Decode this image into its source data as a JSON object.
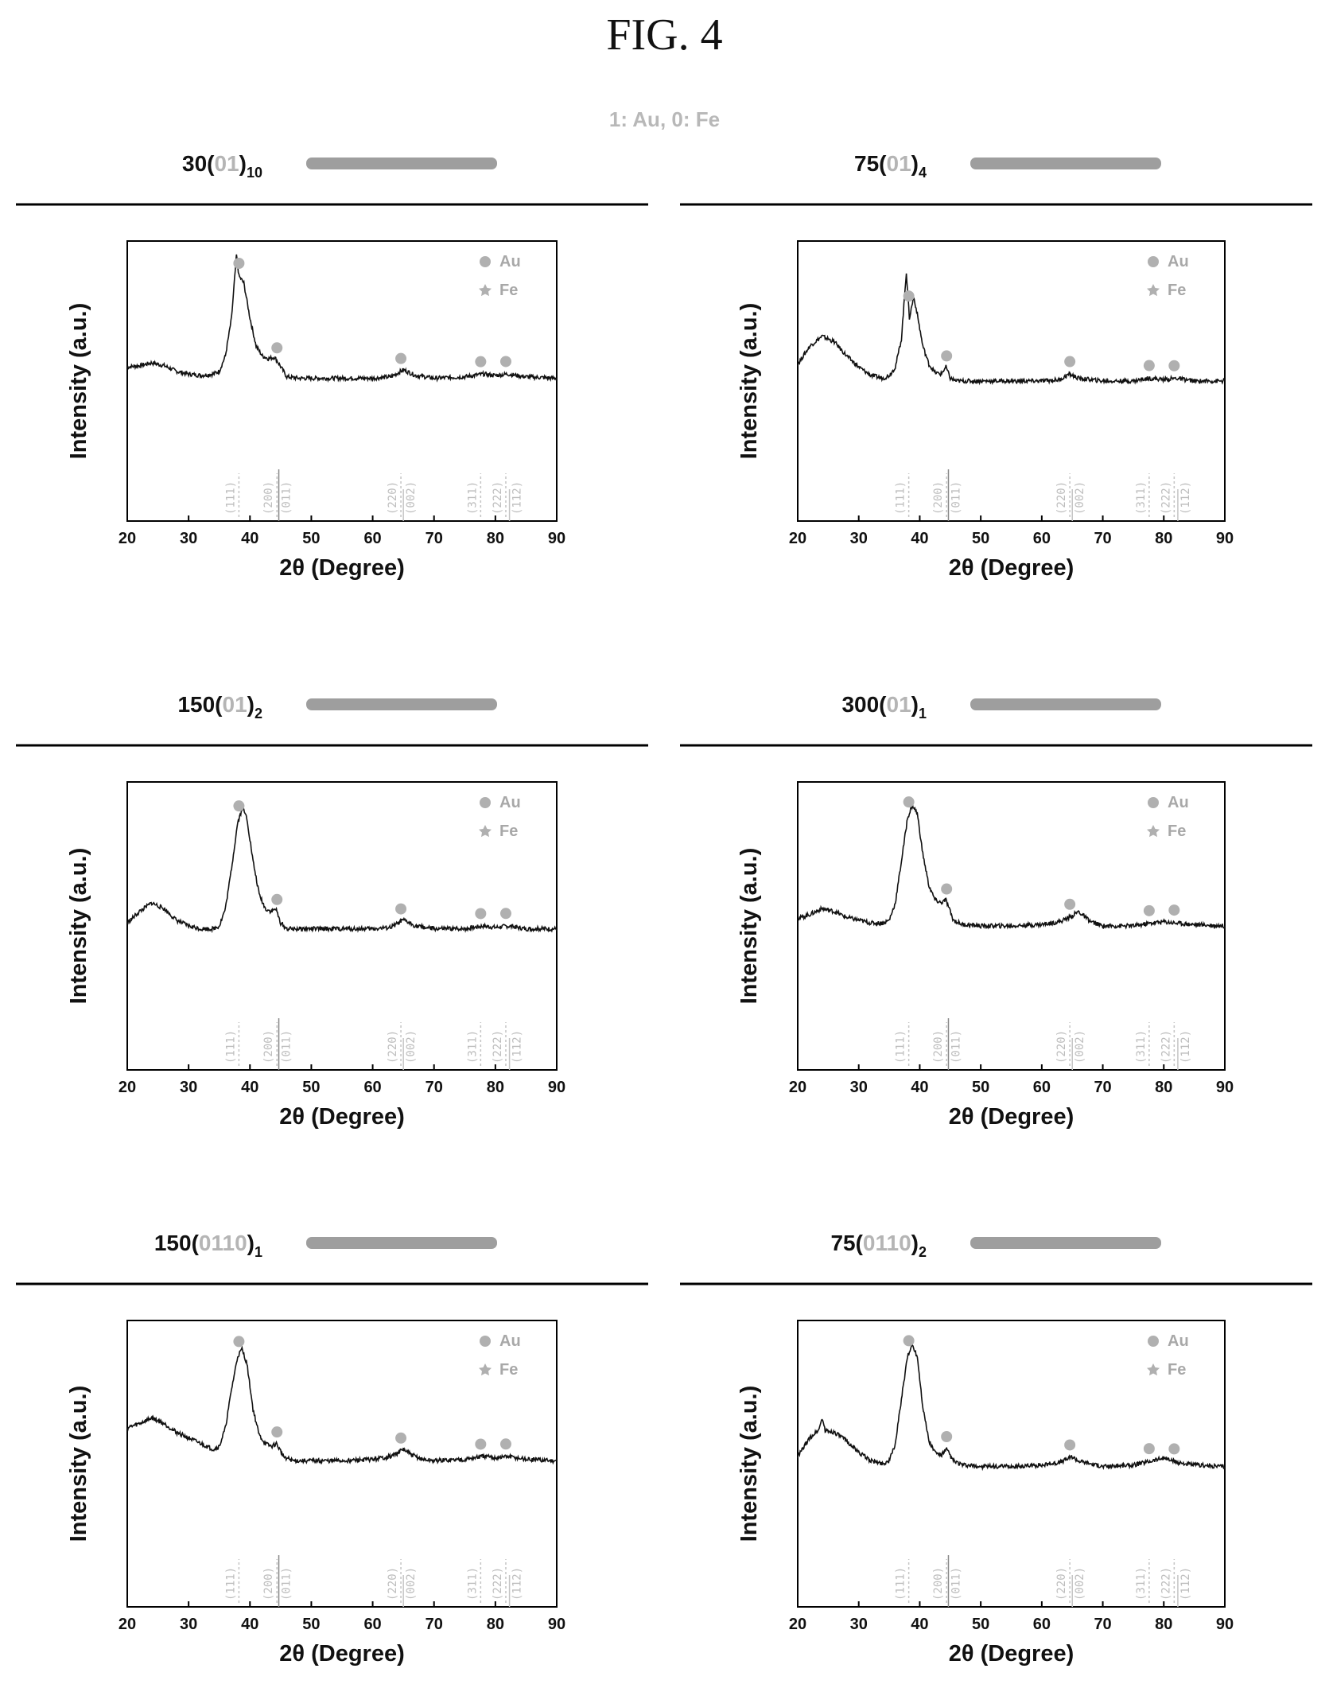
{
  "figure": {
    "title": "FIG. 4",
    "legend": {
      "label_1": "1",
      "label_1_element": "Au",
      "label_0": "0",
      "label_0_element": "Fe",
      "separator": ", "
    }
  },
  "colors": {
    "trace": "#111111",
    "marker": "#b0b0b0",
    "reference_line": "#c4c4c4",
    "bar": "#9e9e9e"
  },
  "chart_data": [
    {
      "type": "line",
      "panel": "30(01)10",
      "title_prefix": "30(",
      "title_highlight": "01",
      "title_suffix": ")",
      "title_subscript": "10",
      "xlabel": "2θ (Degree)",
      "ylabel": "Intensity (a.u.)",
      "xlim": [
        20,
        90
      ],
      "xticks": [
        20,
        30,
        40,
        50,
        60,
        70,
        80,
        90
      ],
      "legend": [
        "Au",
        "Fe"
      ],
      "legend_position": "top-right",
      "series": [
        {
          "x": [
            20,
            22,
            24,
            26,
            28,
            30,
            32,
            34,
            35,
            36,
            37,
            37.8,
            38.2,
            39,
            40,
            41,
            42,
            43,
            44,
            44.5,
            46,
            48,
            50,
            55,
            60,
            63,
            65,
            67,
            70,
            75,
            78,
            80,
            82,
            85,
            90
          ],
          "y": [
            0.2,
            0.21,
            0.23,
            0.21,
            0.17,
            0.15,
            0.14,
            0.15,
            0.17,
            0.28,
            0.55,
            1.0,
            0.85,
            0.8,
            0.55,
            0.35,
            0.28,
            0.26,
            0.27,
            0.24,
            0.13,
            0.12,
            0.12,
            0.12,
            0.12,
            0.13,
            0.18,
            0.14,
            0.12,
            0.13,
            0.15,
            0.14,
            0.15,
            0.13,
            0.12
          ]
        }
      ],
      "au_markers": [
        38.2,
        44.4,
        64.6,
        77.6,
        81.7
      ],
      "fe_markers": []
    },
    {
      "type": "line",
      "panel": "75(01)4",
      "title_prefix": "75(",
      "title_highlight": "01",
      "title_suffix": ")",
      "title_subscript": "4",
      "xlabel": "2θ (Degree)",
      "ylabel": "Intensity (a.u.)",
      "xlim": [
        20,
        90
      ],
      "xticks": [
        20,
        30,
        40,
        50,
        60,
        70,
        80,
        90
      ],
      "legend": [
        "Au",
        "Fe"
      ],
      "legend_position": "top-right",
      "series": [
        {
          "x": [
            20,
            22,
            24,
            26,
            28,
            30,
            32,
            34,
            35,
            36,
            37,
            37.8,
            38.3,
            39,
            39.5,
            40.5,
            41.5,
            42.5,
            43.5,
            44.3,
            45,
            46,
            48,
            50,
            55,
            60,
            63,
            64.5,
            66,
            70,
            75,
            77.5,
            80,
            82,
            85,
            90
          ],
          "y": [
            0.22,
            0.35,
            0.42,
            0.38,
            0.28,
            0.2,
            0.14,
            0.12,
            0.14,
            0.2,
            0.4,
            0.88,
            0.55,
            0.7,
            0.6,
            0.35,
            0.22,
            0.16,
            0.15,
            0.2,
            0.12,
            0.1,
            0.1,
            0.1,
            0.1,
            0.1,
            0.11,
            0.15,
            0.12,
            0.1,
            0.1,
            0.12,
            0.11,
            0.12,
            0.1,
            0.1
          ]
        }
      ],
      "au_markers": [
        38.2,
        44.4,
        64.6,
        77.6,
        81.7
      ],
      "fe_markers": []
    },
    {
      "type": "line",
      "panel": "150(01)2",
      "title_prefix": "150(",
      "title_highlight": "01",
      "title_suffix": ")",
      "title_subscript": "2",
      "xlabel": "2θ (Degree)",
      "ylabel": "Intensity (a.u.)",
      "xlim": [
        20,
        90
      ],
      "xticks": [
        20,
        30,
        40,
        50,
        60,
        70,
        80,
        90
      ],
      "legend": [
        "Au",
        "Fe"
      ],
      "legend_position": "top-right",
      "series": [
        {
          "x": [
            20,
            22,
            24,
            26,
            28,
            30,
            32,
            34,
            35,
            36,
            37,
            38,
            38.8,
            39.5,
            40.5,
            41.5,
            42.5,
            43.5,
            44.2,
            45,
            46,
            48,
            50,
            55,
            60,
            63,
            65,
            67,
            70,
            75,
            78,
            80,
            82,
            85,
            90
          ],
          "y": [
            0.12,
            0.2,
            0.26,
            0.22,
            0.14,
            0.1,
            0.08,
            0.08,
            0.1,
            0.22,
            0.5,
            0.82,
            0.92,
            0.85,
            0.55,
            0.32,
            0.22,
            0.2,
            0.22,
            0.12,
            0.08,
            0.08,
            0.08,
            0.08,
            0.08,
            0.09,
            0.14,
            0.1,
            0.08,
            0.08,
            0.1,
            0.09,
            0.1,
            0.08,
            0.08
          ]
        }
      ],
      "au_markers": [
        38.2,
        44.4,
        64.6,
        77.6,
        81.7
      ],
      "fe_markers": []
    },
    {
      "type": "line",
      "panel": "300(01)1",
      "title_prefix": "300(",
      "title_highlight": "01",
      "title_suffix": ")",
      "title_subscript": "1",
      "xlabel": "2θ (Degree)",
      "ylabel": "Intensity (a.u.)",
      "xlim": [
        20,
        90
      ],
      "xticks": [
        20,
        30,
        40,
        50,
        60,
        70,
        80,
        90
      ],
      "legend": [
        "Au",
        "Fe"
      ],
      "legend_position": "top-right",
      "series": [
        {
          "x": [
            20,
            22,
            24,
            26,
            28,
            30,
            32,
            34,
            35,
            36,
            37,
            38,
            38.8,
            39.6,
            40.5,
            41.5,
            42.5,
            43.5,
            44.3,
            45.5,
            47,
            50,
            55,
            60,
            63,
            65,
            66,
            68,
            70,
            75,
            78,
            80,
            82,
            85,
            90
          ],
          "y": [
            0.15,
            0.18,
            0.22,
            0.2,
            0.16,
            0.14,
            0.12,
            0.12,
            0.14,
            0.26,
            0.55,
            0.85,
            0.94,
            0.88,
            0.6,
            0.38,
            0.28,
            0.26,
            0.28,
            0.14,
            0.11,
            0.1,
            0.1,
            0.11,
            0.13,
            0.17,
            0.2,
            0.13,
            0.1,
            0.1,
            0.12,
            0.13,
            0.12,
            0.11,
            0.1
          ]
        }
      ],
      "au_markers": [
        38.2,
        44.4,
        64.6,
        77.6,
        81.7
      ],
      "fe_markers": []
    },
    {
      "type": "line",
      "panel": "150(0110)1",
      "title_prefix": "150(",
      "title_highlight": "0110",
      "title_suffix": ")",
      "title_subscript": "1",
      "xlabel": "2θ (Degree)",
      "ylabel": "Intensity (a.u.)",
      "xlim": [
        20,
        90
      ],
      "xticks": [
        20,
        30,
        40,
        50,
        60,
        70,
        80,
        90
      ],
      "legend": [
        "Au",
        "Fe"
      ],
      "legend_position": "top-right",
      "series": [
        {
          "x": [
            20,
            22,
            24,
            26,
            28,
            30,
            32,
            34,
            35,
            36,
            37,
            38,
            38.7,
            39.5,
            40.5,
            41.5,
            42.5,
            43.5,
            44.3,
            45.5,
            47,
            50,
            55,
            60,
            63,
            65,
            66,
            68,
            70,
            75,
            78,
            80,
            82,
            85,
            90
          ],
          "y": [
            0.35,
            0.38,
            0.42,
            0.38,
            0.32,
            0.28,
            0.24,
            0.2,
            0.22,
            0.35,
            0.62,
            0.85,
            0.9,
            0.8,
            0.48,
            0.3,
            0.24,
            0.22,
            0.24,
            0.15,
            0.12,
            0.12,
            0.12,
            0.13,
            0.15,
            0.2,
            0.17,
            0.13,
            0.12,
            0.13,
            0.15,
            0.14,
            0.15,
            0.13,
            0.12
          ]
        }
      ],
      "au_markers": [
        38.2,
        44.4,
        64.6,
        77.6,
        81.7
      ],
      "fe_markers": []
    },
    {
      "type": "line",
      "panel": "75(0110)2",
      "title_prefix": "75(",
      "title_highlight": "0110",
      "title_suffix": ")",
      "title_subscript": "2",
      "xlabel": "2θ (Degree)",
      "ylabel": "Intensity (a.u.)",
      "xlim": [
        20,
        90
      ],
      "xticks": [
        20,
        30,
        40,
        50,
        60,
        70,
        80,
        90
      ],
      "legend": [
        "Au",
        "Fe"
      ],
      "legend_position": "top-right",
      "series": [
        {
          "x": [
            20,
            22,
            23.5,
            24,
            24.5,
            26,
            28,
            30,
            32,
            34,
            35,
            36,
            37,
            38,
            38.8,
            39.6,
            40.5,
            41.5,
            42.5,
            43.5,
            44.4,
            45.5,
            47,
            50,
            55,
            60,
            63,
            65,
            66,
            68,
            70,
            75,
            78,
            80,
            82,
            85,
            90
          ],
          "y": [
            0.15,
            0.28,
            0.34,
            0.42,
            0.33,
            0.32,
            0.26,
            0.18,
            0.12,
            0.1,
            0.12,
            0.24,
            0.55,
            0.85,
            0.93,
            0.85,
            0.5,
            0.26,
            0.18,
            0.16,
            0.2,
            0.12,
            0.09,
            0.08,
            0.08,
            0.09,
            0.11,
            0.15,
            0.12,
            0.1,
            0.08,
            0.09,
            0.12,
            0.14,
            0.11,
            0.09,
            0.08
          ]
        }
      ],
      "au_markers": [
        38.2,
        44.4,
        64.6,
        77.6,
        81.7
      ],
      "fe_markers": []
    }
  ]
}
